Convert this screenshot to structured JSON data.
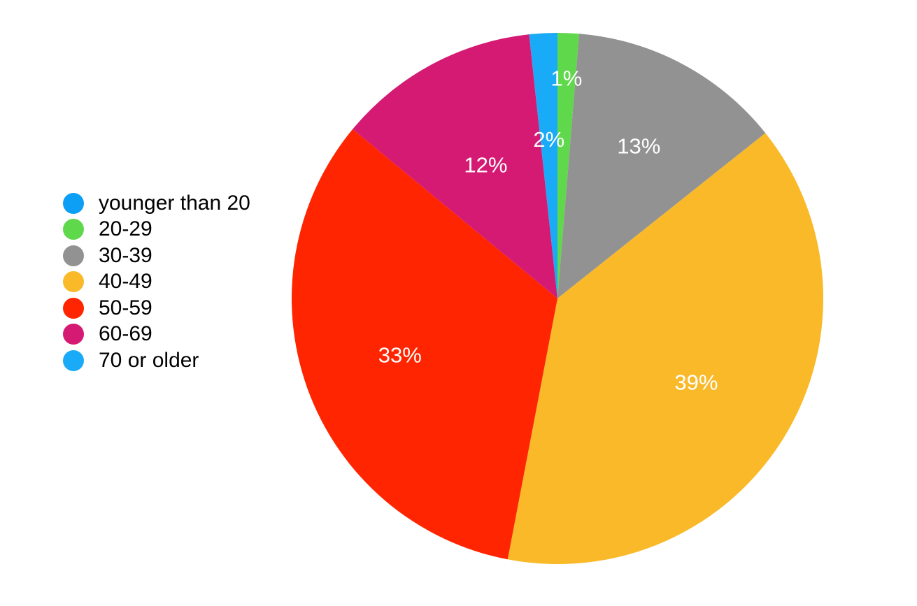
{
  "chart_data": {
    "type": "pie",
    "title": "",
    "legend_position": "left",
    "slices": [
      {
        "label": "younger than 20",
        "value": 0,
        "display": "",
        "color": "#0d9ff5"
      },
      {
        "label": "20-29",
        "value": 1.3,
        "display": "1%",
        "color": "#60d84b"
      },
      {
        "label": "30-39",
        "value": 13,
        "display": "13%",
        "color": "#929292"
      },
      {
        "label": "40-49",
        "value": 38.7,
        "display": "39%",
        "color": "#f9b929"
      },
      {
        "label": "50-59",
        "value": 33,
        "display": "33%",
        "color": "#ff2501"
      },
      {
        "label": "60-69",
        "value": 12.3,
        "display": "12%",
        "color": "#d51a73"
      },
      {
        "label": "70 or older",
        "value": 1.7,
        "display": "2%",
        "color": "#1aabf8"
      }
    ]
  }
}
